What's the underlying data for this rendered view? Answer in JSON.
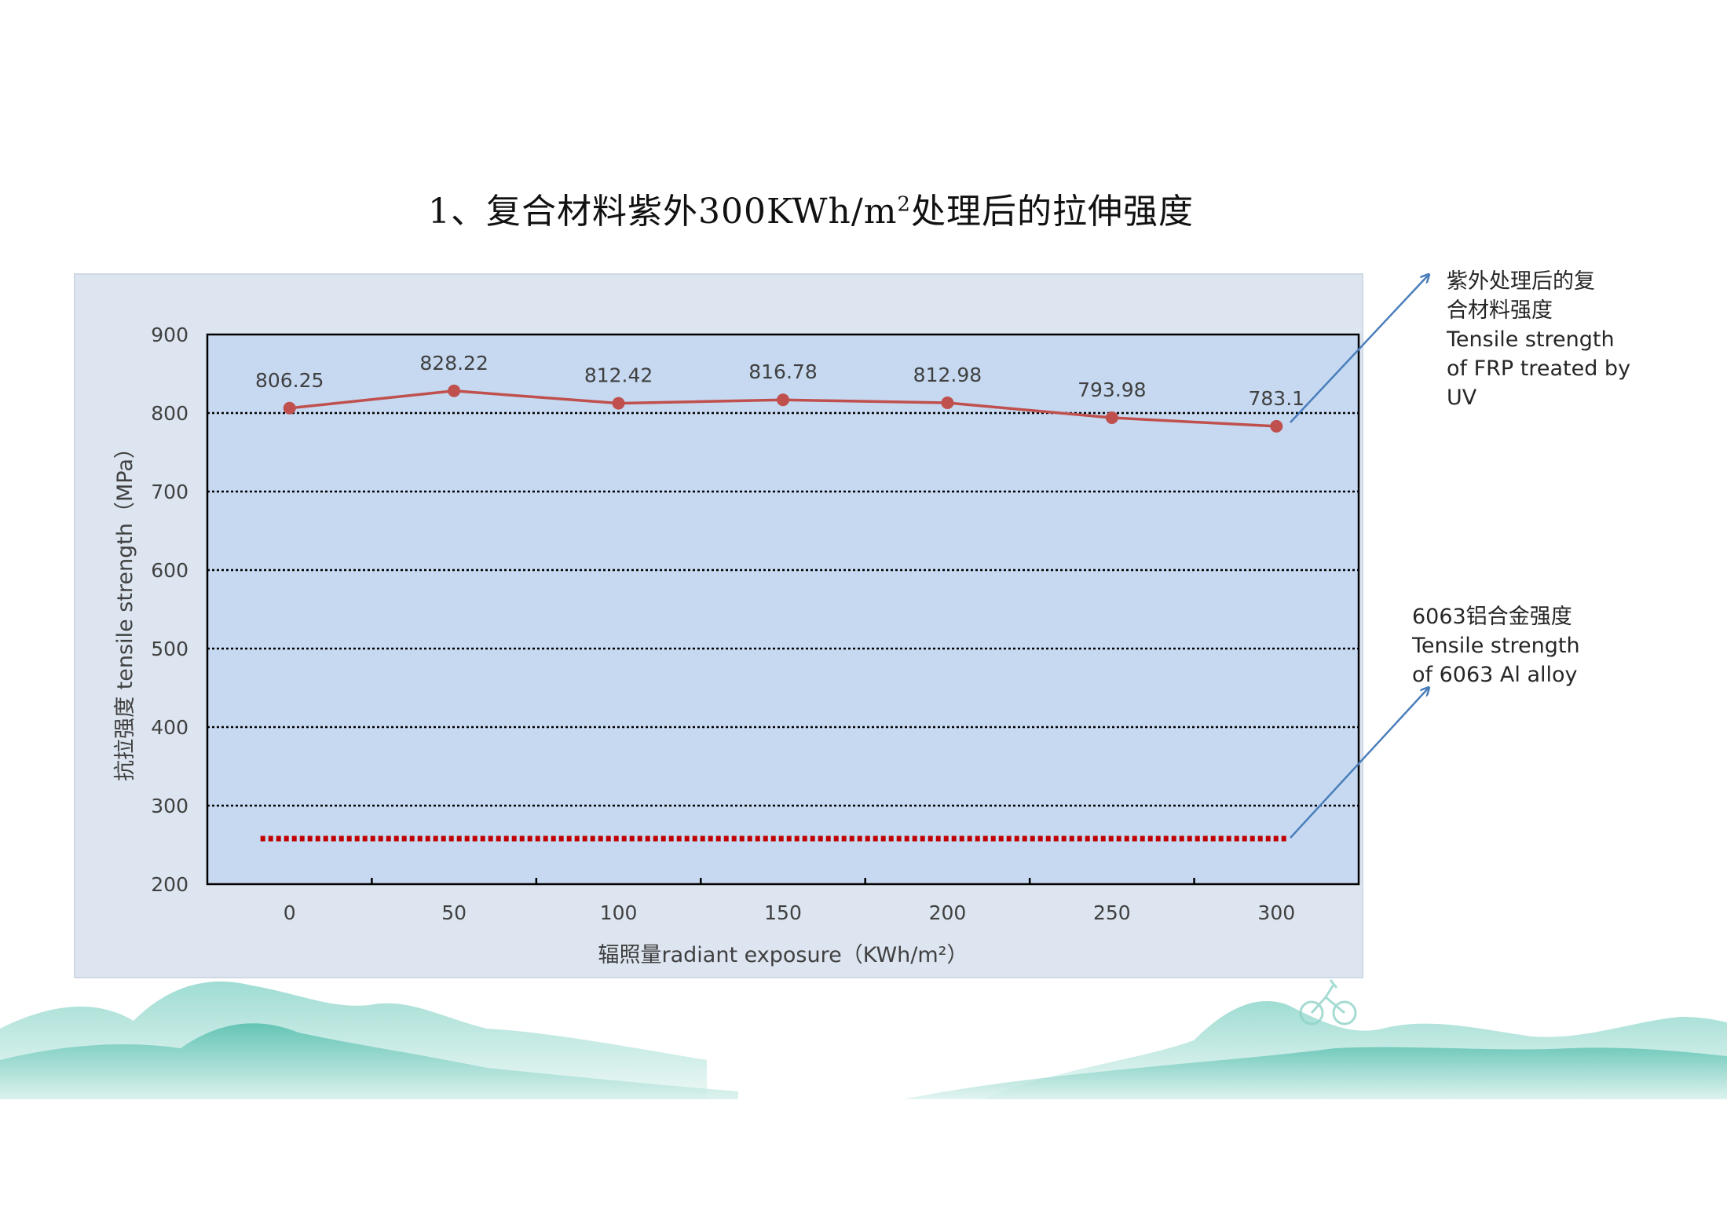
{
  "title": "1、复合材料紫外300KWh/m²处理后的拉伸强度",
  "colors": {
    "frp_series": "#c0504d",
    "alloy_line": "#c00000",
    "plot_bg": "#c6d9f1",
    "panel_bg": "#dce5f0",
    "arrow": "#4a7ebb",
    "hills": "#5fc4b4"
  },
  "annotations": {
    "frp": [
      "紫外处理后的复",
      "合材料强度",
      "Tensile strength",
      "of FRP treated by",
      "UV"
    ],
    "alloy": [
      "6063铝合金强度",
      "Tensile strength",
      "of 6063 Al alloy"
    ]
  },
  "chart_data": {
    "type": "line",
    "title": "1、复合材料紫外300KWh/m²处理后的拉伸强度",
    "xlabel": "辐照量radiant exposure（KWh/m²）",
    "ylabel": "抗拉强度 tensile strength（MPa）",
    "x": [
      0,
      50,
      100,
      150,
      200,
      250,
      300
    ],
    "ylim": [
      200,
      900
    ],
    "yticks": [
      200,
      300,
      400,
      500,
      600,
      700,
      800,
      900
    ],
    "grid": "horizontal dotted",
    "legend": "none",
    "series": [
      {
        "values": [
          806.25,
          828.22,
          812.42,
          816.78,
          812.98,
          793.98,
          783.1
        ],
        "data_labels": [
          "806.25",
          "828.22",
          "812.42",
          "816.78",
          "812.98",
          "793.98",
          "783.1"
        ],
        "style": "solid line with markers"
      },
      {
        "values": [
          258,
          258,
          258,
          258,
          258,
          258,
          258
        ],
        "style": "dotted"
      }
    ]
  }
}
